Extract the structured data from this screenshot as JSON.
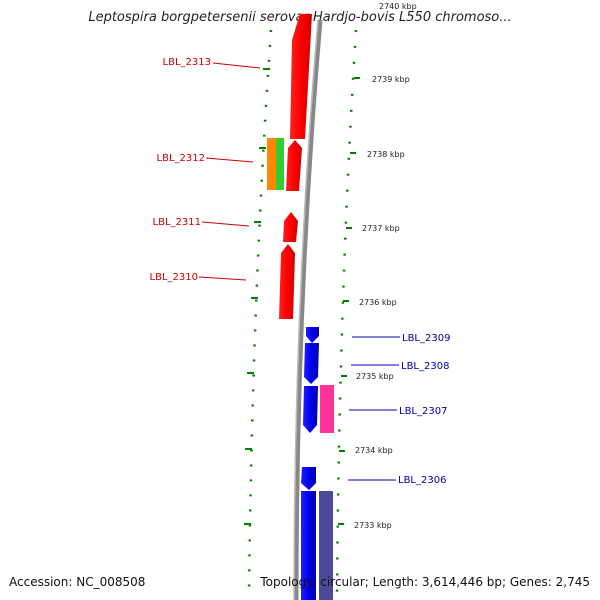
{
  "title": "Leptospira borgpetersenii serovar Hardjo-bovis L550 chromoso...",
  "footer": {
    "accession": "Accession: NC_008508",
    "summary": "Topology: circular; Length: 3,614,446 bp; Genes: 2,745"
  },
  "colors": {
    "forward_gene": "#ff0000",
    "reverse_gene": "#0000ee",
    "orange_feature": "#ff8800",
    "green_feature": "#33cc33",
    "magenta_feature": "#ff3399",
    "navy_feature": "#4a4a99",
    "backbone": "#808080",
    "gc_dots": "#008000",
    "forward_label": "#cc0000",
    "reverse_label": "#0000aa"
  },
  "scale_labels": [
    "2740 kbp",
    "2739 kbp",
    "2738 kbp",
    "2737 kbp",
    "2736 kbp",
    "2735 kbp",
    "2734 kbp",
    "2733 kbp"
  ],
  "forward_labels": [
    "LBL_2313",
    "LBL_2312",
    "LBL_2311",
    "LBL_2310"
  ],
  "reverse_labels": [
    "LBL_2309",
    "LBL_2308",
    "LBL_2307",
    "LBL_2306"
  ]
}
